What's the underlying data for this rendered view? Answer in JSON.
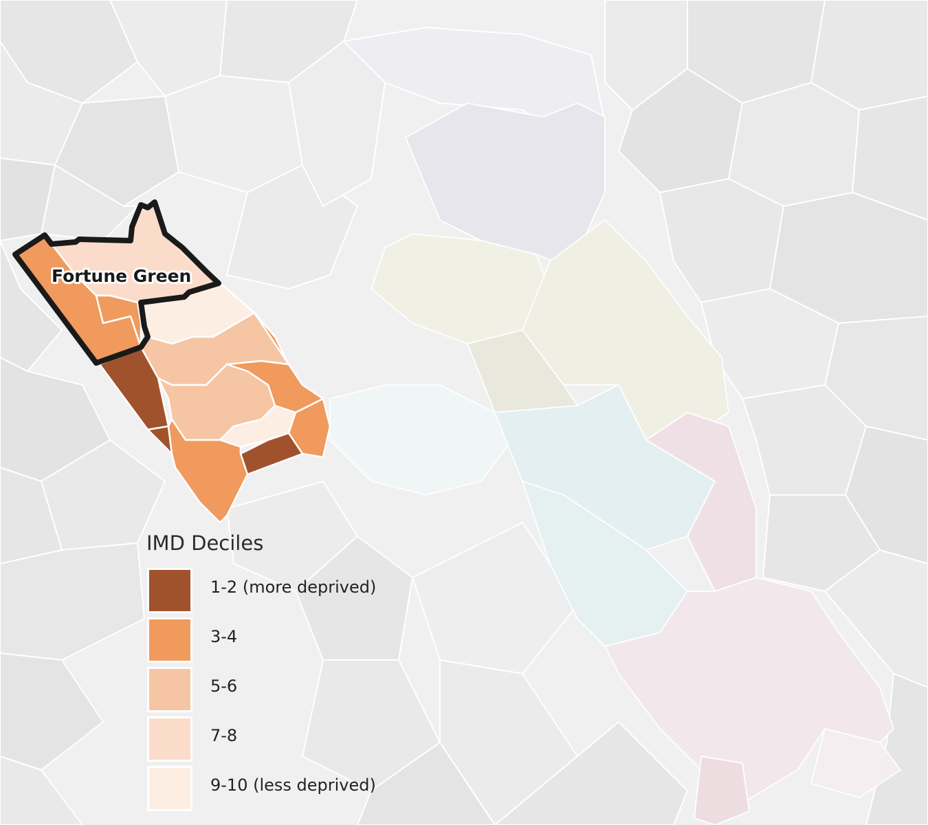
{
  "map": {
    "highlighted_area_label": "Fortune Green",
    "colors": {
      "background": "#f2f2f2",
      "boundary_lines": "#ffffff",
      "highlight_outline": "#1a1a1a"
    }
  },
  "legend": {
    "title": "IMD Deciles",
    "items": [
      {
        "label": "1-2 (more deprived)",
        "color": "#a0522d"
      },
      {
        "label": "3-4",
        "color": "#f09a5e"
      },
      {
        "label": "5-6",
        "color": "#f6c5a3"
      },
      {
        "label": "7-8",
        "color": "#fbdccb"
      },
      {
        "label": "9-10 (less deprived)",
        "color": "#fdeee4"
      }
    ]
  }
}
